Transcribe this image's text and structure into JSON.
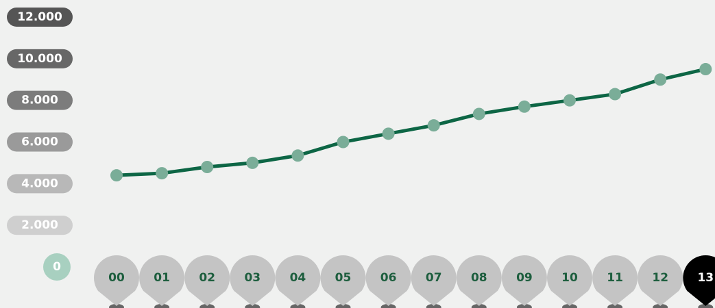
{
  "chart_data": {
    "type": "line",
    "categories": [
      "00",
      "01",
      "02",
      "03",
      "04",
      "05",
      "06",
      "07",
      "08",
      "09",
      "10",
      "11",
      "12",
      "13"
    ],
    "values": [
      4400,
      4500,
      4800,
      5000,
      5350,
      6000,
      6400,
      6800,
      7350,
      7700,
      8000,
      8300,
      9000,
      9500
    ],
    "color": "#0d6645",
    "marker_color": "#7aad98",
    "ylim": [
      0,
      12000
    ],
    "yticks": [
      0,
      {
        "value": 2000,
        "label": "2.000"
      },
      {
        "value": 4000,
        "label": "4.000"
      },
      {
        "value": 6000,
        "label": "6.000"
      },
      {
        "value": 8000,
        "label": "8.000"
      },
      {
        "value": 10000,
        "label": "10.000"
      },
      {
        "value": 12000,
        "label": "12.000"
      }
    ],
    "selected_category": 13
  }
}
